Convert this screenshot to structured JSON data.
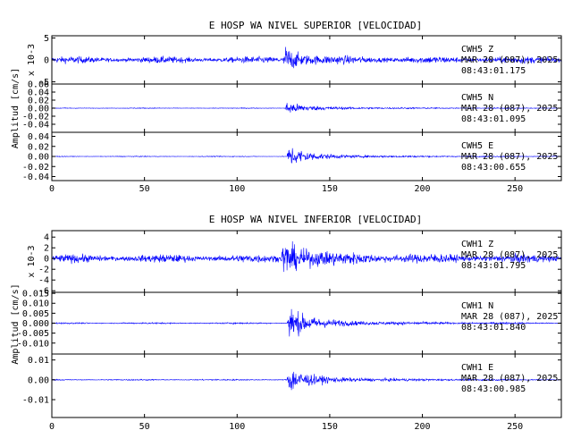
{
  "chart_data": [
    {
      "type": "line",
      "title": "E HOSP WA NIVEL SUPERIOR [VELOCIDAD]",
      "ylabel": "Amplitud [cm/s]",
      "xlim": [
        0,
        275
      ],
      "xticks": [
        0,
        50,
        100,
        150,
        200,
        250
      ],
      "color": "#0000ff",
      "panels": [
        {
          "channel": "CWH5   Z",
          "date": "MAR 28 (087), 2025",
          "time": "08:43:01.175",
          "scale_note": "x 10-3",
          "ylim": [
            -5.5,
            5.5
          ],
          "yticks": [
            5,
            0,
            -5
          ],
          "ytick_labels": [
            "5",
            "0",
            "-5"
          ],
          "noise": 1.2,
          "event_peak": 5.0,
          "event_onset": 125,
          "event_decay": 6,
          "coda": 1.0
        },
        {
          "channel": "CWH5   N",
          "date": "MAR 28 (087), 2025",
          "time": "08:43:01.095",
          "ylim": [
            -0.06,
            0.06
          ],
          "yticks": [
            0.06,
            0.04,
            0.02,
            0.0,
            -0.02,
            -0.04
          ],
          "ytick_labels": [
            "0.06",
            "0.04",
            "0.02",
            "0.00",
            "-0.02",
            "-0.04"
          ],
          "noise": 0.0015,
          "event_peak": 0.024,
          "event_onset": 126,
          "event_decay": 8,
          "coda": 0.008
        },
        {
          "channel": "CWH5   E",
          "date": "MAR 28 (087), 2025",
          "time": "08:43:00.655",
          "ylim": [
            -0.048,
            0.048
          ],
          "yticks": [
            0.04,
            0.02,
            0.0,
            -0.02,
            -0.04
          ],
          "ytick_labels": [
            "0.04",
            "0.02",
            "0.00",
            "-0.02",
            "-0.04"
          ],
          "noise": 0.0012,
          "event_peak": 0.036,
          "event_onset": 127,
          "event_decay": 9,
          "coda": 0.007
        }
      ]
    },
    {
      "type": "line",
      "title": "E HOSP WA NIVEL INFERIOR [VELOCIDAD]",
      "ylabel": "Amplitud [cm/s]",
      "xlim": [
        0,
        275
      ],
      "xticks": [
        0,
        50,
        100,
        150,
        200,
        250
      ],
      "color": "#0000ff",
      "panels": [
        {
          "channel": "CWH1   Z",
          "date": "MAR 28 (087), 2025",
          "time": "08:43:01.795",
          "scale_note": "x 10-3",
          "ylim": [
            -6.3,
            5.2
          ],
          "yticks": [
            4,
            2,
            0,
            -2,
            -4,
            -6
          ],
          "ytick_labels": [
            "4",
            "2",
            "0",
            "-2",
            "-4",
            "-6"
          ],
          "noise": 1.2,
          "event_peak": 4.2,
          "event_onset": 124,
          "event_decay": 8,
          "coda": 1.8
        },
        {
          "channel": "CWH1   N",
          "date": "MAR 28 (087), 2025",
          "time": "08:43:01.840",
          "ylim": [
            -0.0155,
            0.0155
          ],
          "yticks": [
            0.015,
            0.01,
            0.005,
            0.0,
            -0.005,
            -0.01
          ],
          "ytick_labels": [
            "0.015",
            "0.010",
            "0.005",
            "0.000",
            "-0.005",
            "-0.010"
          ],
          "noise": 0.0006,
          "event_peak": 0.013,
          "event_onset": 127,
          "event_decay": 8,
          "coda": 0.0035
        },
        {
          "channel": "CWH1   E",
          "date": "MAR 28 (087), 2025",
          "time": "08:43:00.985",
          "ylim": [
            -0.019,
            0.013
          ],
          "yticks": [
            0.01,
            0.0,
            -0.01
          ],
          "ytick_labels": [
            "0.01",
            "0.00",
            "-0.01"
          ],
          "noise": 0.0005,
          "event_peak": 0.0105,
          "event_onset": 127,
          "event_decay": 8,
          "coda": 0.003
        }
      ]
    }
  ]
}
